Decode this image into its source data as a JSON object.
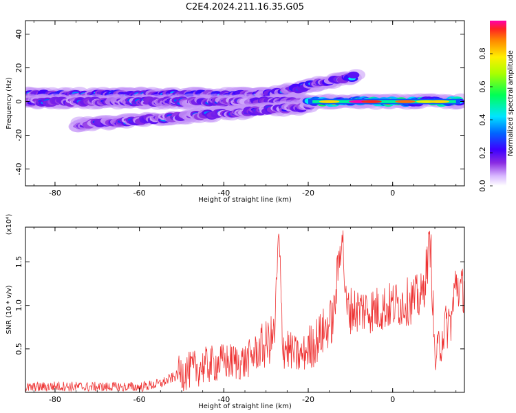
{
  "title": "C2E4.2024.211.16.35.G05",
  "chart_data": [
    {
      "type": "heatmap",
      "xlabel": "Height of straight line (km)",
      "ylabel": "Frequency (Hz)",
      "xlim": [
        -87,
        17
      ],
      "ylim": [
        -50,
        48
      ],
      "x_ticks": [
        -80,
        -60,
        -40,
        -20,
        0
      ],
      "y_ticks": [
        -40,
        -20,
        0,
        20,
        40
      ],
      "colorbar": {
        "label": "Normalized spectral amplitude",
        "range": [
          0,
          1
        ],
        "ticks": [
          0.0,
          0.2,
          0.4,
          0.6,
          0.8
        ]
      },
      "bands": [
        {
          "name": "upper-left",
          "x": [
            -87,
            -30
          ],
          "y_start": 4,
          "y_end": 4,
          "max_amp": 0.45
        },
        {
          "name": "upper-rising",
          "x": [
            -30,
            -9
          ],
          "y_start": 4,
          "y_end": 15,
          "max_amp": 0.45
        },
        {
          "name": "center",
          "x": [
            -87,
            -20
          ],
          "y_start": 0,
          "y_end": 0,
          "max_amp": 0.35
        },
        {
          "name": "lower-rising",
          "x": [
            -75,
            -20
          ],
          "y_start": -14,
          "y_end": -3,
          "max_amp": 0.35
        },
        {
          "name": "right-strong",
          "x": [
            -20,
            16
          ],
          "y_start": 0,
          "y_end": 0,
          "max_amp": 1.0
        }
      ]
    },
    {
      "type": "line",
      "xlabel": "Height of straight line (km)",
      "ylabel": "SNR (10 * v/v)",
      "y_multiplier": "(x10⁴)",
      "xlim": [
        -87,
        17
      ],
      "ylim": [
        0,
        1.9
      ],
      "x_ticks": [
        -80,
        -60,
        -40,
        -20,
        0
      ],
      "y_ticks": [
        0.5,
        1.0,
        1.5
      ],
      "series": [
        {
          "color": "#ee3333",
          "x": [
            -87,
            -80,
            -70,
            -60,
            -55,
            -50,
            -45,
            -40,
            -35,
            -30,
            -28,
            -27,
            -26,
            -22,
            -18,
            -14,
            -12,
            -11,
            -8,
            -4,
            0,
            4,
            7,
            9,
            10,
            12,
            14,
            15,
            16,
            17
          ],
          "y": [
            0.05,
            0.07,
            0.06,
            0.06,
            0.1,
            0.22,
            0.3,
            0.35,
            0.35,
            0.55,
            0.65,
            1.8,
            0.55,
            0.4,
            0.6,
            0.85,
            1.9,
            0.95,
            0.95,
            0.95,
            1.0,
            1.05,
            1.1,
            1.75,
            0.35,
            0.7,
            0.85,
            1.3,
            1.15,
            1.2
          ]
        }
      ]
    }
  ]
}
